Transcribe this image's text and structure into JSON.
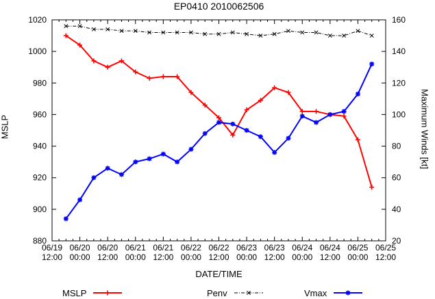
{
  "chart_data": {
    "type": "line",
    "title": "EP0410 2010062506",
    "xlabel": "DATE/TIME",
    "ylabel_left": "MSLP",
    "ylabel_right": "Maximum Winds [kt]",
    "ylim_left": [
      880,
      1020
    ],
    "ylim_right": [
      20,
      160
    ],
    "y_tick_step": 20,
    "y_ticks_left": [
      880,
      900,
      920,
      940,
      960,
      980,
      1000,
      1020
    ],
    "y_ticks_right": [
      20,
      40,
      60,
      80,
      100,
      120,
      140,
      160
    ],
    "x_axis_start": "06/19 12:00",
    "x_axis_end": "06/25 12:00",
    "x_hours_span": 144,
    "x_major_tick_hours": 12,
    "x_minor_tick_hours": 3,
    "x_tick_labels": [
      [
        "06/19",
        "12:00"
      ],
      [
        "06/20",
        "00:00"
      ],
      [
        "06/20",
        "12:00"
      ],
      [
        "06/21",
        "00:00"
      ],
      [
        "06/21",
        "12:00"
      ],
      [
        "06/22",
        "00:00"
      ],
      [
        "06/22",
        "12:00"
      ],
      [
        "06/23",
        "00:00"
      ],
      [
        "06/23",
        "12:00"
      ],
      [
        "06/24",
        "00:00"
      ],
      [
        "06/24",
        "12:00"
      ],
      [
        "06/25",
        "00:00"
      ],
      [
        "06/25",
        "12:00"
      ]
    ],
    "grid": false,
    "legend_position": "bottom",
    "x_times": [
      "06/19 18:00",
      "06/20 00:00",
      "06/20 06:00",
      "06/20 12:00",
      "06/20 18:00",
      "06/21 00:00",
      "06/21 06:00",
      "06/21 12:00",
      "06/21 18:00",
      "06/22 00:00",
      "06/22 06:00",
      "06/22 12:00",
      "06/22 18:00",
      "06/23 00:00",
      "06/23 06:00",
      "06/23 12:00",
      "06/23 18:00",
      "06/24 00:00",
      "06/24 06:00",
      "06/24 12:00",
      "06/24 18:00",
      "06/25 00:00",
      "06/25 06:00"
    ],
    "x_hours": [
      6,
      12,
      18,
      24,
      30,
      36,
      42,
      48,
      54,
      60,
      66,
      72,
      78,
      84,
      90,
      96,
      102,
      108,
      114,
      120,
      126,
      132,
      138
    ],
    "series": [
      {
        "name": "MSLP",
        "axis": "left",
        "color": "#ff0000",
        "marker": "plus",
        "line": "solid",
        "values": [
          1010,
          1004,
          994,
          990,
          994,
          987,
          983,
          984,
          984,
          974,
          966,
          958,
          947,
          963,
          969,
          977,
          974,
          962,
          962,
          960,
          959,
          944,
          914
        ]
      },
      {
        "name": "Penv",
        "axis": "left",
        "color": "#000000",
        "marker": "cross",
        "line": "dashdot",
        "values": [
          1016,
          1016,
          1014,
          1014,
          1013,
          1013,
          1012,
          1012,
          1012,
          1012,
          1011,
          1011,
          1012,
          1011,
          1010,
          1011,
          1013,
          1012,
          1012,
          1010,
          1010,
          1013,
          1010
        ]
      },
      {
        "name": "Vmax",
        "axis": "right",
        "color": "#0000ff",
        "marker": "asterisk",
        "line": "solid",
        "values": [
          34,
          46,
          60,
          66,
          62,
          70,
          72,
          75,
          70,
          78,
          88,
          95,
          94,
          90,
          86,
          76,
          85,
          99,
          95,
          100,
          102,
          113,
          132
        ]
      }
    ]
  }
}
